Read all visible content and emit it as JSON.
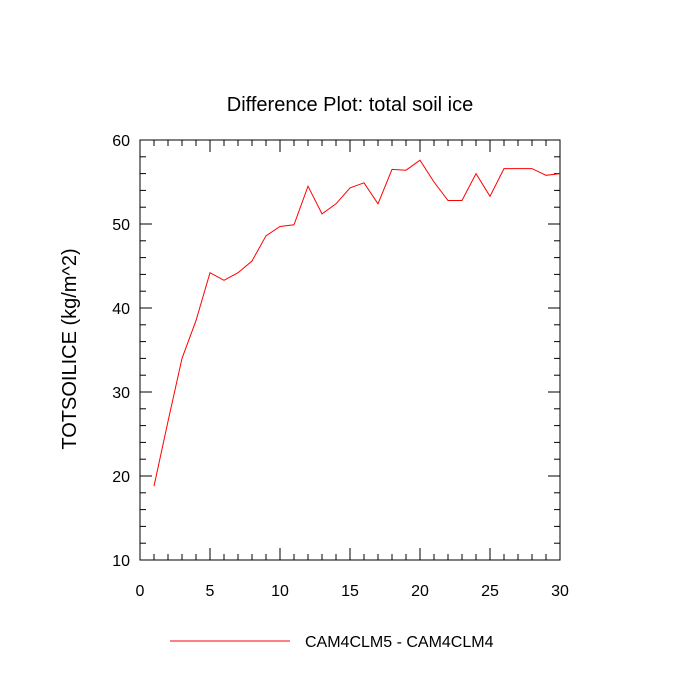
{
  "chart_data": {
    "type": "line",
    "title": "Difference Plot: total soil ice",
    "xlabel": "",
    "ylabel": "TOTSOILICE  (kg/m^2)",
    "xlim": [
      0,
      30
    ],
    "ylim": [
      10,
      60
    ],
    "x_ticks": [
      "0",
      "5",
      "10",
      "15",
      "20",
      "25",
      "30"
    ],
    "y_ticks": [
      "10",
      "20",
      "30",
      "40",
      "50",
      "60"
    ],
    "grid": false,
    "legend_position": "bottom",
    "series": [
      {
        "name": "CAM4CLM5 - CAM4CLM4",
        "color": "#ff0000",
        "x": [
          1,
          2,
          3,
          4,
          5,
          6,
          7,
          8,
          9,
          10,
          11,
          12,
          13,
          14,
          15,
          16,
          17,
          18,
          19,
          20,
          21,
          22,
          23,
          24,
          25,
          26,
          27,
          28,
          29,
          30
        ],
        "values": [
          18.8,
          26.5,
          34.0,
          38.5,
          44.2,
          43.3,
          44.2,
          45.6,
          48.6,
          49.7,
          49.9,
          54.5,
          51.2,
          52.4,
          54.3,
          54.9,
          52.4,
          56.5,
          56.4,
          57.6,
          55.0,
          52.8,
          52.8,
          56.0,
          53.3,
          56.6,
          56.6,
          56.6,
          55.8,
          56.0
        ]
      }
    ]
  }
}
